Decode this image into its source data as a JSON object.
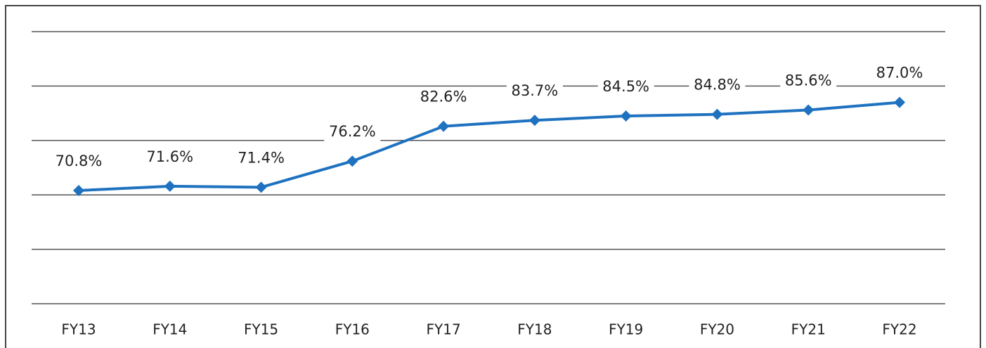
{
  "chart_data": {
    "type": "line",
    "categories": [
      "FY13",
      "FY14",
      "FY15",
      "FY16",
      "FY17",
      "FY18",
      "FY19",
      "FY20",
      "FY21",
      "FY22"
    ],
    "series": [
      {
        "color": "#1f72c0",
        "values": [
          70.8,
          71.6,
          71.4,
          76.2,
          82.6,
          83.7,
          84.5,
          84.8,
          85.6,
          87.0
        ],
        "value_labels": [
          "70.8%",
          "71.6%",
          "71.4%",
          "76.2%",
          "82.6%",
          "83.7%",
          "84.5%",
          "84.8%",
          "85.6%",
          "87.0%"
        ]
      }
    ],
    "ylim": [
      50,
      100
    ],
    "yticks": [
      50,
      60,
      70,
      80,
      90,
      100
    ],
    "grid": true
  }
}
